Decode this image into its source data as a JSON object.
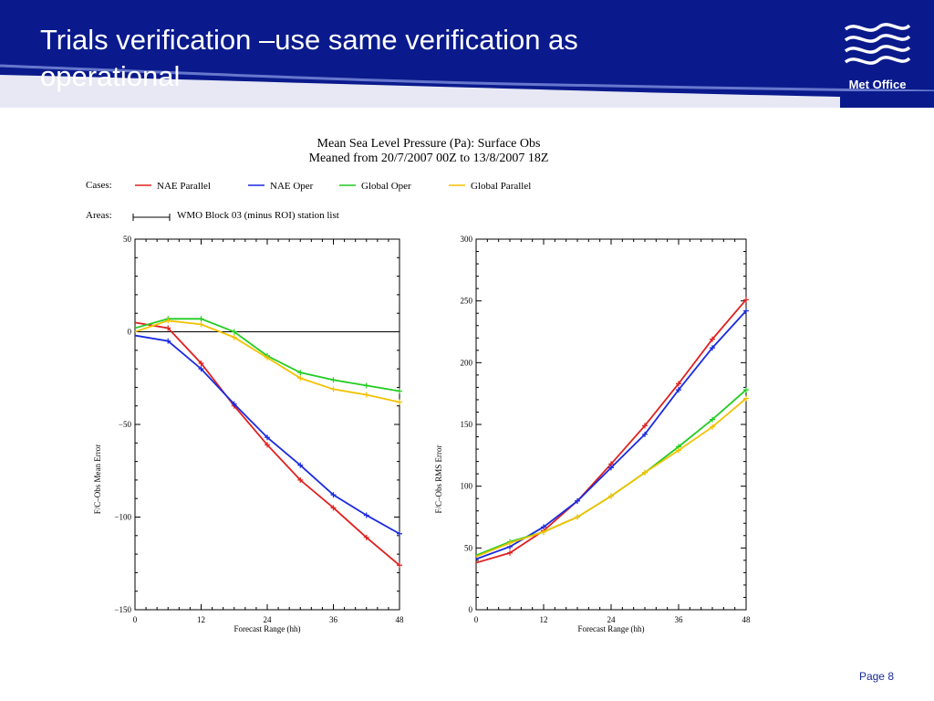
{
  "slide": {
    "title_line1": "Trials verification –use same verification as",
    "title_line2": "operational",
    "logo_text": "Met Office",
    "page_label": "Page 8"
  },
  "colors": {
    "header_blue": "#0a1a8c",
    "wave": "#ffffff"
  },
  "figure": {
    "title_line1": "Mean Sea Level Pressure (Pa):  Surface Obs",
    "title_line2": "Meaned from 20/7/2007 00Z to 13/8/2007 18Z",
    "cases_label": "Cases:",
    "areas_label": "Areas:",
    "areas_text": "WMO Block 03 (minus ROI) station list",
    "legend": [
      {
        "name": "NAE Parallel",
        "color": "#e0201e"
      },
      {
        "name": "NAE Oper",
        "color": "#1a2ae0"
      },
      {
        "name": "Global Oper",
        "color": "#22cc22"
      },
      {
        "name": "Global Parallel",
        "color": "#f2c200"
      }
    ]
  },
  "chart_data": [
    {
      "type": "line",
      "x": [
        0,
        6,
        12,
        18,
        24,
        30,
        36,
        42,
        48
      ],
      "xlabel": "Forecast Range (hh)",
      "ylabel": "F/C–Obs Mean Error",
      "xlim": [
        0,
        48
      ],
      "ylim": [
        -150,
        50
      ],
      "xticks": [
        "0",
        "12",
        "24",
        "36",
        "48"
      ],
      "yticks": [
        "50",
        "0",
        "−50",
        "−100",
        "−150"
      ],
      "zero_line": true,
      "series": [
        {
          "name": "NAE Parallel",
          "color": "#e0201e",
          "values": [
            5,
            2,
            -17,
            -40,
            -61,
            -80,
            -95,
            -111,
            -126
          ]
        },
        {
          "name": "NAE Oper",
          "color": "#1a2ae0",
          "values": [
            -2,
            -5,
            -20,
            -39,
            -57,
            -72,
            -88,
            -99,
            -109
          ]
        },
        {
          "name": "Global Oper",
          "color": "#22cc22",
          "values": [
            2,
            7,
            7,
            0,
            -13,
            -22,
            -26,
            -29,
            -32
          ]
        },
        {
          "name": "Global Parallel",
          "color": "#f2c200",
          "values": [
            0,
            6,
            4,
            -3,
            -14,
            -25,
            -31,
            -34,
            -38
          ]
        }
      ]
    },
    {
      "type": "line",
      "x": [
        0,
        6,
        12,
        18,
        24,
        30,
        36,
        42,
        48
      ],
      "xlabel": "Forecast Range (hh)",
      "ylabel": "F/C–Obs RMS Error",
      "xlim": [
        0,
        48
      ],
      "ylim": [
        0,
        300
      ],
      "xticks": [
        "0",
        "12",
        "24",
        "36",
        "48"
      ],
      "yticks": [
        "300",
        "250",
        "200",
        "150",
        "100",
        "50",
        "0"
      ],
      "zero_line": false,
      "series": [
        {
          "name": "NAE Parallel",
          "color": "#e0201e",
          "values": [
            38,
            46,
            64,
            88,
            118,
            149,
            183,
            219,
            251
          ]
        },
        {
          "name": "NAE Oper",
          "color": "#1a2ae0",
          "values": [
            41,
            51,
            67,
            88,
            115,
            142,
            178,
            212,
            242
          ]
        },
        {
          "name": "Global Oper",
          "color": "#22cc22",
          "values": [
            44,
            55,
            63,
            75,
            92,
            111,
            132,
            154,
            178
          ]
        },
        {
          "name": "Global Parallel",
          "color": "#f2c200",
          "values": [
            43,
            54,
            63,
            75,
            92,
            111,
            129,
            148,
            171
          ]
        }
      ]
    }
  ]
}
